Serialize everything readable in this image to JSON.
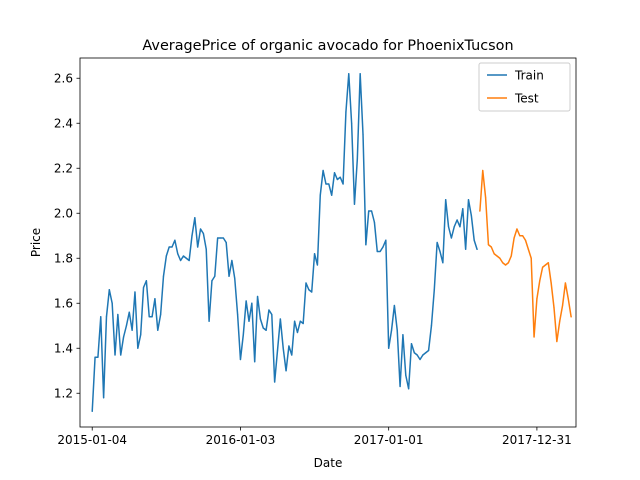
{
  "chart_data": {
    "type": "line",
    "title": "AveragePrice of organic avocado for PhoenixTucson",
    "xlabel": "Date",
    "ylabel": "Price",
    "x_axis_type": "date",
    "x_tick_labels": [
      "2015-01-04",
      "2016-01-03",
      "2017-01-01",
      "2017-12-31"
    ],
    "y_tick_labels": [
      "1.2",
      "1.4",
      "1.6",
      "1.8",
      "2.0",
      "2.2",
      "2.4",
      "2.6"
    ],
    "ylim": [
      1.05,
      2.69
    ],
    "xlim": [
      "2014-12-05",
      "2018-04-06"
    ],
    "legend_position": "top-right",
    "grid": false,
    "colors": {
      "train": "#1f77b4",
      "test": "#ff7f0e"
    },
    "series": [
      {
        "name": "Train",
        "color": "#1f77b4",
        "points": [
          [
            "2015-01-04",
            1.12
          ],
          [
            "2015-01-11",
            1.36
          ],
          [
            "2015-01-18",
            1.36
          ],
          [
            "2015-01-25",
            1.54
          ],
          [
            "2015-02-01",
            1.18
          ],
          [
            "2015-02-08",
            1.54
          ],
          [
            "2015-02-15",
            1.66
          ],
          [
            "2015-02-22",
            1.6
          ],
          [
            "2015-03-01",
            1.37
          ],
          [
            "2015-03-08",
            1.55
          ],
          [
            "2015-03-15",
            1.37
          ],
          [
            "2015-03-22",
            1.45
          ],
          [
            "2015-03-29",
            1.5
          ],
          [
            "2015-04-05",
            1.56
          ],
          [
            "2015-04-12",
            1.48
          ],
          [
            "2015-04-19",
            1.65
          ],
          [
            "2015-04-26",
            1.4
          ],
          [
            "2015-05-03",
            1.46
          ],
          [
            "2015-05-10",
            1.67
          ],
          [
            "2015-05-17",
            1.7
          ],
          [
            "2015-05-24",
            1.54
          ],
          [
            "2015-05-31",
            1.54
          ],
          [
            "2015-06-07",
            1.62
          ],
          [
            "2015-06-14",
            1.48
          ],
          [
            "2015-06-21",
            1.55
          ],
          [
            "2015-06-28",
            1.72
          ],
          [
            "2015-07-05",
            1.81
          ],
          [
            "2015-07-12",
            1.85
          ],
          [
            "2015-07-19",
            1.85
          ],
          [
            "2015-07-26",
            1.88
          ],
          [
            "2015-08-02",
            1.82
          ],
          [
            "2015-08-09",
            1.79
          ],
          [
            "2015-08-16",
            1.81
          ],
          [
            "2015-08-23",
            1.8
          ],
          [
            "2015-08-30",
            1.79
          ],
          [
            "2015-09-06",
            1.9
          ],
          [
            "2015-09-13",
            1.98
          ],
          [
            "2015-09-20",
            1.85
          ],
          [
            "2015-09-27",
            1.93
          ],
          [
            "2015-10-04",
            1.91
          ],
          [
            "2015-10-11",
            1.84
          ],
          [
            "2015-10-18",
            1.52
          ],
          [
            "2015-10-25",
            1.7
          ],
          [
            "2015-11-01",
            1.72
          ],
          [
            "2015-11-08",
            1.89
          ],
          [
            "2015-11-15",
            1.89
          ],
          [
            "2015-11-22",
            1.89
          ],
          [
            "2015-11-29",
            1.87
          ],
          [
            "2015-12-06",
            1.72
          ],
          [
            "2015-12-13",
            1.79
          ],
          [
            "2015-12-20",
            1.71
          ],
          [
            "2015-12-27",
            1.55
          ],
          [
            "2016-01-03",
            1.35
          ],
          [
            "2016-01-10",
            1.46
          ],
          [
            "2016-01-17",
            1.61
          ],
          [
            "2016-01-24",
            1.52
          ],
          [
            "2016-01-31",
            1.6
          ],
          [
            "2016-02-07",
            1.34
          ],
          [
            "2016-02-14",
            1.63
          ],
          [
            "2016-02-21",
            1.53
          ],
          [
            "2016-02-28",
            1.49
          ],
          [
            "2016-03-06",
            1.48
          ],
          [
            "2016-03-13",
            1.57
          ],
          [
            "2016-03-20",
            1.55
          ],
          [
            "2016-03-27",
            1.25
          ],
          [
            "2016-04-03",
            1.39
          ],
          [
            "2016-04-10",
            1.53
          ],
          [
            "2016-04-17",
            1.4
          ],
          [
            "2016-04-24",
            1.3
          ],
          [
            "2016-05-01",
            1.41
          ],
          [
            "2016-05-08",
            1.37
          ],
          [
            "2016-05-15",
            1.52
          ],
          [
            "2016-05-22",
            1.47
          ],
          [
            "2016-05-29",
            1.52
          ],
          [
            "2016-06-05",
            1.51
          ],
          [
            "2016-06-12",
            1.69
          ],
          [
            "2016-06-19",
            1.66
          ],
          [
            "2016-06-26",
            1.65
          ],
          [
            "2016-07-03",
            1.82
          ],
          [
            "2016-07-10",
            1.77
          ],
          [
            "2016-07-17",
            2.08
          ],
          [
            "2016-07-24",
            2.19
          ],
          [
            "2016-07-31",
            2.13
          ],
          [
            "2016-08-07",
            2.13
          ],
          [
            "2016-08-14",
            2.08
          ],
          [
            "2016-08-21",
            2.18
          ],
          [
            "2016-08-28",
            2.15
          ],
          [
            "2016-09-04",
            2.16
          ],
          [
            "2016-09-11",
            2.13
          ],
          [
            "2016-09-18",
            2.45
          ],
          [
            "2016-09-25",
            2.62
          ],
          [
            "2016-10-02",
            2.4
          ],
          [
            "2016-10-09",
            2.04
          ],
          [
            "2016-10-16",
            2.24
          ],
          [
            "2016-10-23",
            2.62
          ],
          [
            "2016-10-30",
            2.35
          ],
          [
            "2016-11-06",
            1.86
          ],
          [
            "2016-11-13",
            2.01
          ],
          [
            "2016-11-20",
            2.01
          ],
          [
            "2016-11-27",
            1.96
          ],
          [
            "2016-12-04",
            1.83
          ],
          [
            "2016-12-11",
            1.83
          ],
          [
            "2016-12-18",
            1.85
          ],
          [
            "2016-12-25",
            1.88
          ],
          [
            "2017-01-01",
            1.4
          ],
          [
            "2017-01-08",
            1.48
          ],
          [
            "2017-01-15",
            1.59
          ],
          [
            "2017-01-22",
            1.48
          ],
          [
            "2017-01-29",
            1.23
          ],
          [
            "2017-02-05",
            1.46
          ],
          [
            "2017-02-12",
            1.28
          ],
          [
            "2017-02-19",
            1.22
          ],
          [
            "2017-02-26",
            1.42
          ],
          [
            "2017-03-05",
            1.38
          ],
          [
            "2017-03-12",
            1.37
          ],
          [
            "2017-03-19",
            1.35
          ],
          [
            "2017-03-26",
            1.37
          ],
          [
            "2017-04-02",
            1.38
          ],
          [
            "2017-04-09",
            1.39
          ],
          [
            "2017-04-16",
            1.5
          ],
          [
            "2017-04-23",
            1.66
          ],
          [
            "2017-04-30",
            1.87
          ],
          [
            "2017-05-07",
            1.83
          ],
          [
            "2017-05-14",
            1.78
          ],
          [
            "2017-05-21",
            2.06
          ],
          [
            "2017-05-28",
            1.94
          ],
          [
            "2017-06-04",
            1.89
          ],
          [
            "2017-06-11",
            1.94
          ],
          [
            "2017-06-18",
            1.97
          ],
          [
            "2017-06-25",
            1.94
          ],
          [
            "2017-07-02",
            2.02
          ],
          [
            "2017-07-09",
            1.84
          ],
          [
            "2017-07-16",
            2.06
          ],
          [
            "2017-07-23",
            1.99
          ],
          [
            "2017-07-30",
            1.88
          ],
          [
            "2017-08-06",
            1.84
          ]
        ]
      },
      {
        "name": "Test",
        "color": "#ff7f0e",
        "points": [
          [
            "2017-08-13",
            2.01
          ],
          [
            "2017-08-20",
            2.19
          ],
          [
            "2017-08-27",
            2.07
          ],
          [
            "2017-09-03",
            1.86
          ],
          [
            "2017-09-10",
            1.85
          ],
          [
            "2017-09-17",
            1.82
          ],
          [
            "2017-09-24",
            1.81
          ],
          [
            "2017-10-01",
            1.8
          ],
          [
            "2017-10-08",
            1.78
          ],
          [
            "2017-10-15",
            1.77
          ],
          [
            "2017-10-22",
            1.78
          ],
          [
            "2017-10-29",
            1.81
          ],
          [
            "2017-11-05",
            1.89
          ],
          [
            "2017-11-12",
            1.93
          ],
          [
            "2017-11-19",
            1.9
          ],
          [
            "2017-11-26",
            1.9
          ],
          [
            "2017-12-03",
            1.88
          ],
          [
            "2017-12-10",
            1.84
          ],
          [
            "2017-12-17",
            1.8
          ],
          [
            "2017-12-24",
            1.45
          ],
          [
            "2017-12-31",
            1.62
          ],
          [
            "2018-01-07",
            1.7
          ],
          [
            "2018-01-14",
            1.76
          ],
          [
            "2018-01-21",
            1.77
          ],
          [
            "2018-01-28",
            1.78
          ],
          [
            "2018-02-04",
            1.69
          ],
          [
            "2018-02-11",
            1.58
          ],
          [
            "2018-02-18",
            1.43
          ],
          [
            "2018-02-25",
            1.52
          ],
          [
            "2018-03-04",
            1.59
          ],
          [
            "2018-03-11",
            1.69
          ],
          [
            "2018-03-18",
            1.62
          ],
          [
            "2018-03-25",
            1.54
          ]
        ]
      }
    ]
  }
}
